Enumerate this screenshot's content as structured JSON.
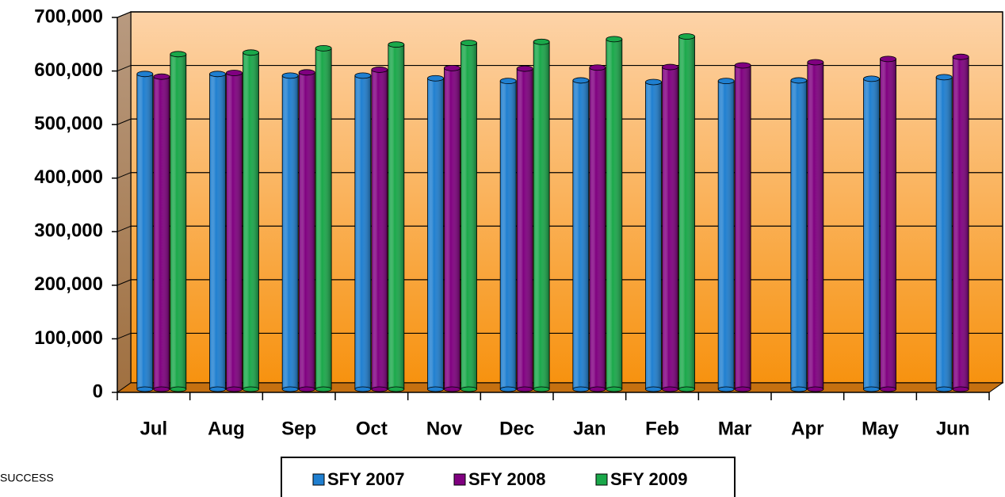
{
  "chart_data": {
    "type": "bar",
    "categories": [
      "Jul",
      "Aug",
      "Sep",
      "Oct",
      "Nov",
      "Dec",
      "Jan",
      "Feb",
      "Mar",
      "Apr",
      "May",
      "Jun"
    ],
    "series": [
      {
        "name": "SFY 2007",
        "color": "#1f7fd0",
        "values": [
          590000,
          590000,
          587000,
          587000,
          582000,
          577000,
          578000,
          575000,
          577000,
          578000,
          581000,
          584000
        ]
      },
      {
        "name": "SFY 2008",
        "color": "#800080",
        "values": [
          585000,
          592000,
          593000,
          598000,
          601000,
          600000,
          602000,
          603000,
          606000,
          612000,
          618000,
          622000
        ]
      },
      {
        "name": "SFY 2009",
        "color": "#1aa84a",
        "values": [
          627000,
          630000,
          638000,
          645000,
          648000,
          650000,
          655000,
          660000,
          null,
          null,
          null,
          null
        ]
      }
    ],
    "ylim": [
      0,
      700000
    ],
    "yticks": [
      0,
      {
        "value": 100000,
        "label": "100,000"
      },
      {
        "value": 200000,
        "label": "200,000"
      },
      {
        "value": 300000,
        "label": "300,000"
      },
      {
        "value": 400000,
        "label": "400,000"
      },
      {
        "value": 500000,
        "label": "500,000"
      },
      {
        "value": 600000,
        "label": "600,000"
      },
      {
        "value": 700000,
        "label": "700,000"
      }
    ],
    "grid": true,
    "legend": "bottom",
    "annotation": "SUCCESS"
  }
}
